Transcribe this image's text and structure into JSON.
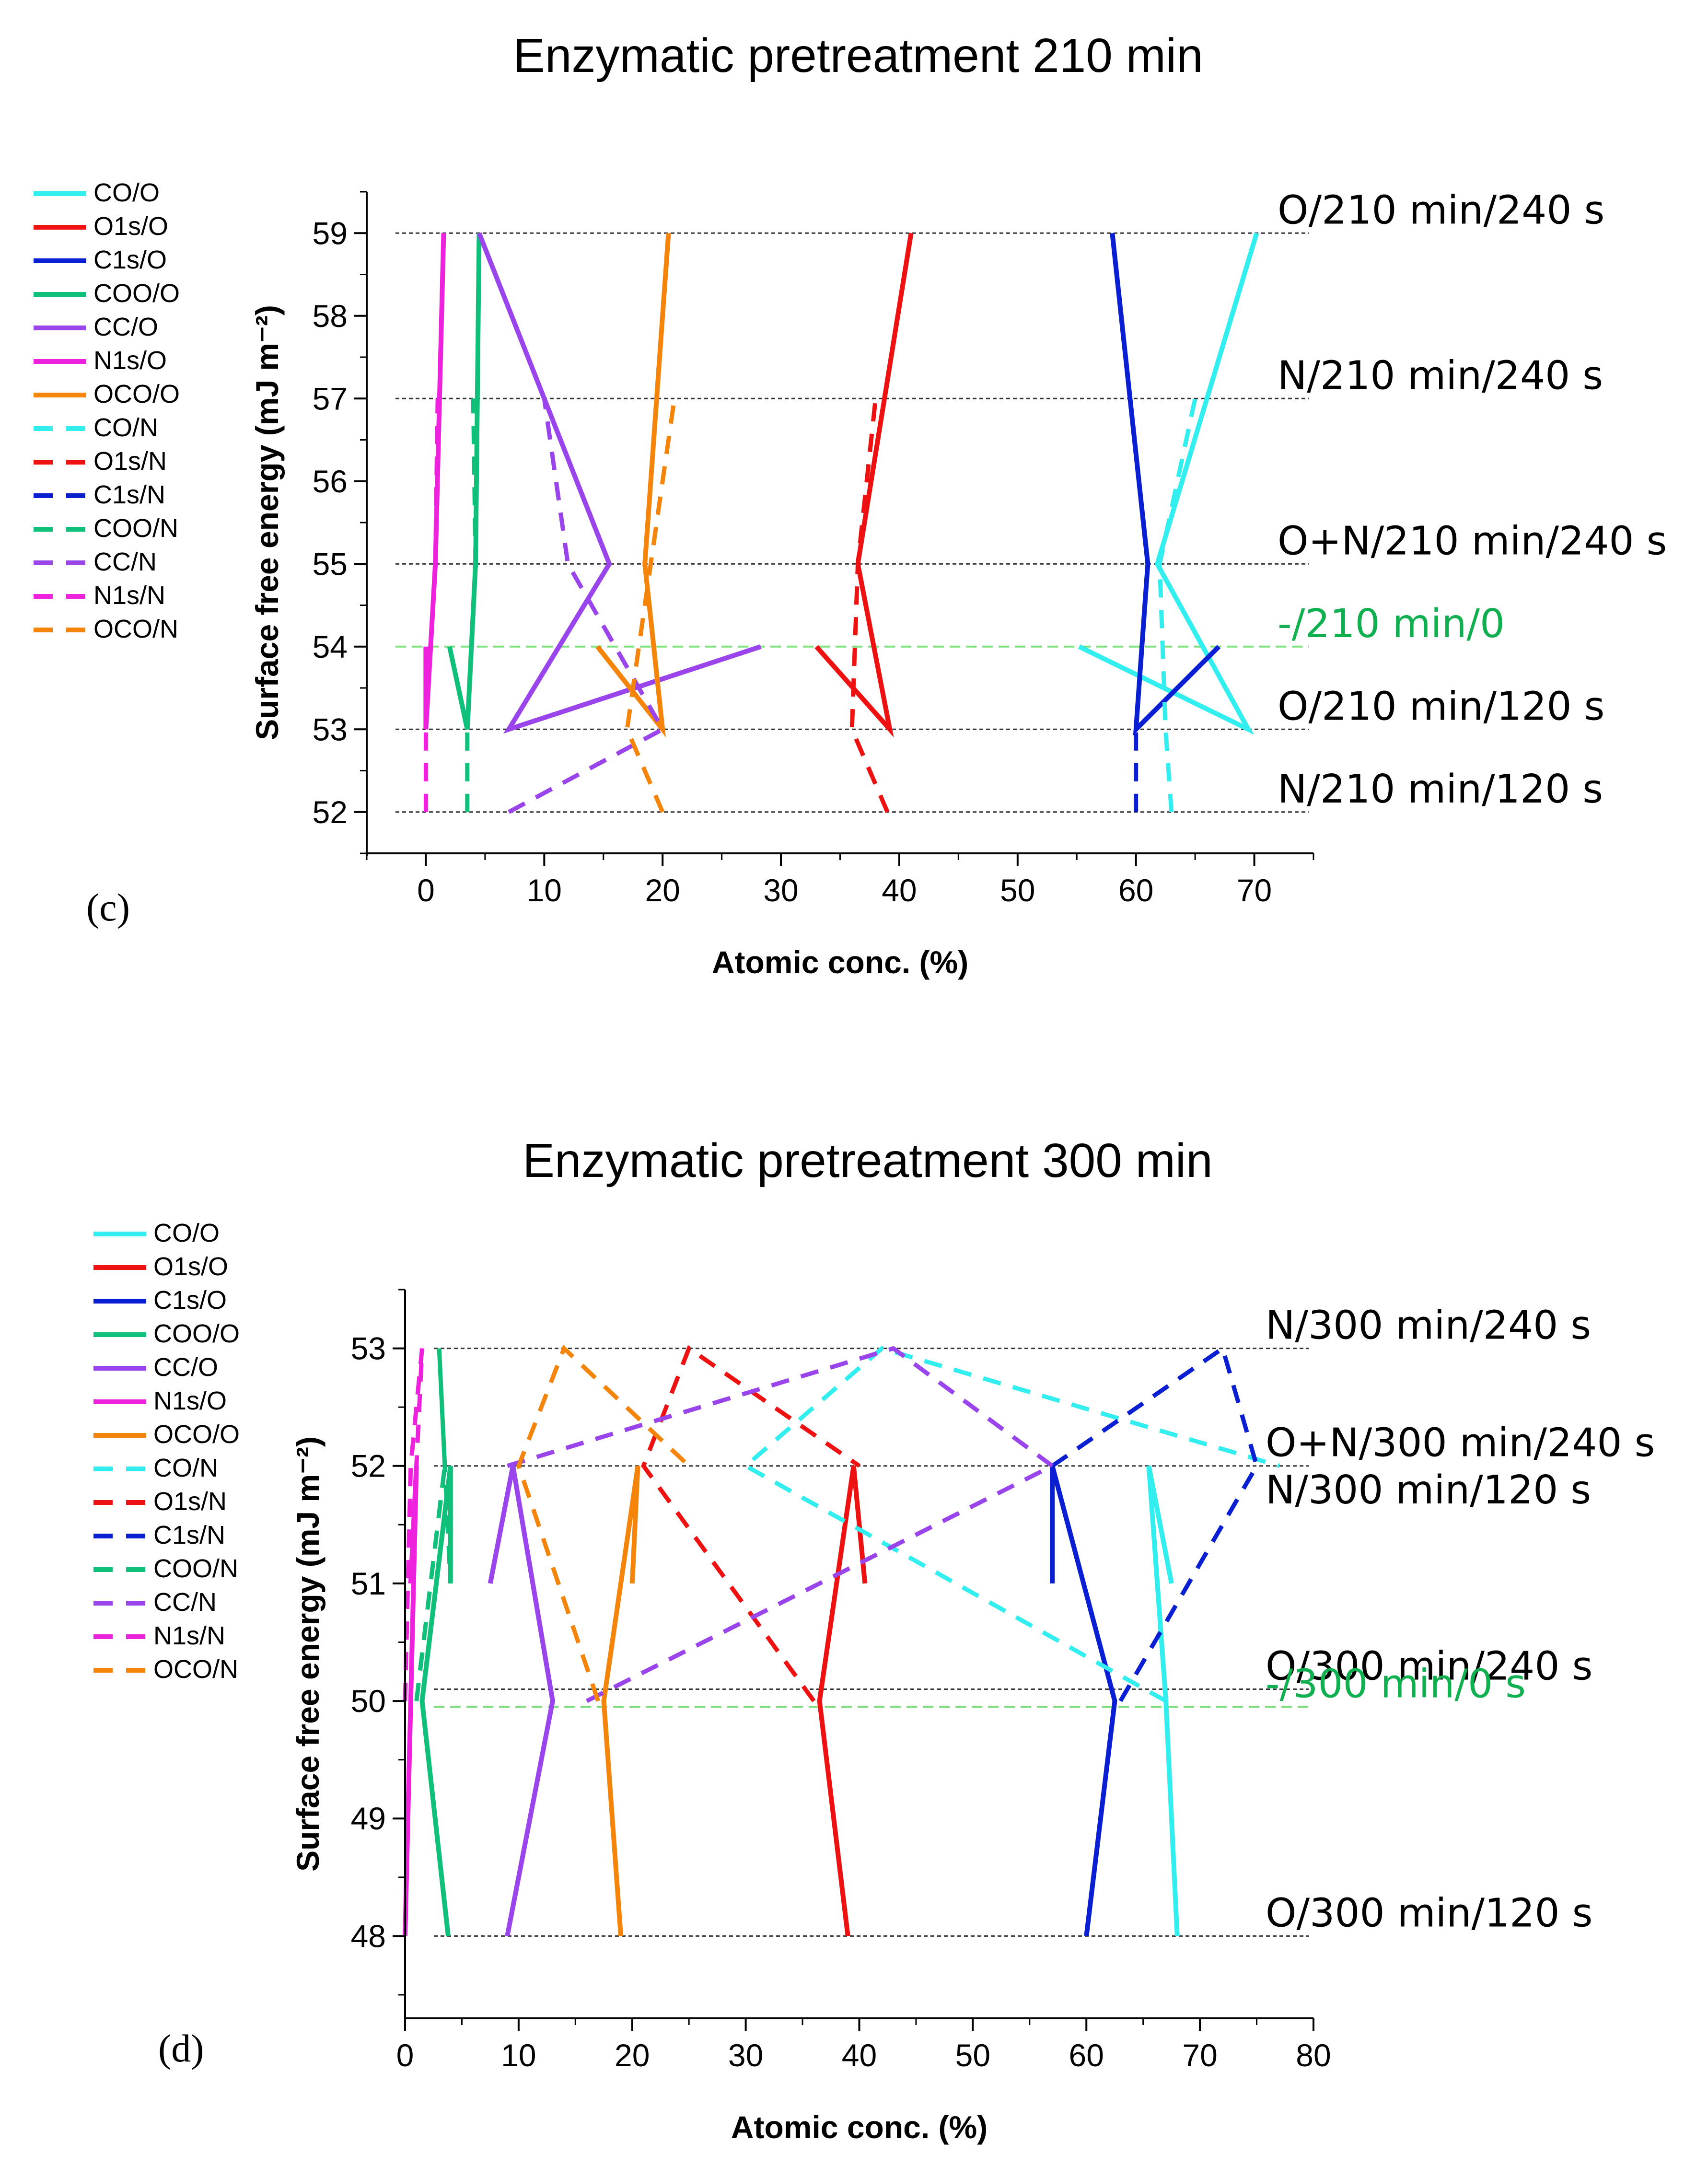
{
  "colors": {
    "CO": "#33eeee",
    "O1s": "#ee1111",
    "C1s": "#0a1ed2",
    "COO": "#10c07a",
    "CC": "#9a44ec",
    "N1s": "#ee22dd",
    "OCO": "#f5840a",
    "annotation_green": "#10b050"
  },
  "chart_data": [
    {
      "type": "line",
      "panel_label": "(c)",
      "title": "Enzymatic pretreatment 210 min",
      "xlabel": "Atomic conc. (%)",
      "ylabel": "Surface free energy (mJ m⁻²)",
      "xlim": [
        -5,
        75
      ],
      "ylim": [
        51.5,
        59.5
      ],
      "xticks": [
        0,
        10,
        20,
        30,
        40,
        50,
        60,
        70
      ],
      "yticks": [
        52,
        53,
        54,
        55,
        56,
        57,
        58,
        59
      ],
      "legend_position": "left",
      "legend": [
        "CO/O",
        "O1s/O",
        "C1s/O",
        "COO/O",
        "CC/O",
        "N1s/O",
        "OCO/O",
        "CO/N",
        "O1s/N",
        "C1s/N",
        "COO/N",
        "CC/N",
        "N1s/N",
        "OCO/N"
      ],
      "reference_lines": [
        {
          "y": 59,
          "label": "O/210 min/240 s",
          "style": "black"
        },
        {
          "y": 57,
          "label": "N/210 min/240 s",
          "style": "black"
        },
        {
          "y": 55,
          "label": "O+N/210 min/240 s",
          "style": "black"
        },
        {
          "y": 54,
          "label": "-/210 min/0",
          "style": "green"
        },
        {
          "y": 53,
          "label": "O/210 min/120 s",
          "style": "black"
        },
        {
          "y": 52,
          "label": "N/210 min/120 s",
          "style": "black"
        }
      ],
      "series": [
        {
          "name": "CO/O",
          "key": "CO",
          "dashed": false,
          "points": [
            [
              55.2,
              54
            ],
            [
              69.5,
              53
            ],
            [
              61.8,
              55
            ],
            [
              70.2,
              59
            ]
          ]
        },
        {
          "name": "O1s/O",
          "key": "O1s",
          "dashed": false,
          "points": [
            [
              33.0,
              54
            ],
            [
              39.2,
              53
            ],
            [
              36.5,
              55
            ],
            [
              41.0,
              59
            ]
          ]
        },
        {
          "name": "C1s/O",
          "key": "C1s",
          "dashed": false,
          "points": [
            [
              67.0,
              54
            ],
            [
              60.0,
              53
            ],
            [
              61.0,
              55
            ],
            [
              58.0,
              59
            ]
          ]
        },
        {
          "name": "COO/O",
          "key": "COO",
          "dashed": false,
          "points": [
            [
              2.0,
              54
            ],
            [
              3.5,
              53
            ],
            [
              4.2,
              55
            ],
            [
              4.5,
              59
            ]
          ]
        },
        {
          "name": "CC/O",
          "key": "CC",
          "dashed": false,
          "points": [
            [
              28.3,
              54
            ],
            [
              7.0,
              53
            ],
            [
              15.5,
              55
            ],
            [
              4.5,
              59
            ]
          ]
        },
        {
          "name": "N1s/O",
          "key": "N1s",
          "dashed": false,
          "points": [
            [
              0.0,
              54
            ],
            [
              0.0,
              53
            ],
            [
              0.8,
              55
            ],
            [
              1.5,
              59
            ]
          ]
        },
        {
          "name": "OCO/O",
          "key": "OCO",
          "dashed": false,
          "points": [
            [
              14.5,
              54
            ],
            [
              20.0,
              53
            ],
            [
              18.5,
              55
            ],
            [
              20.5,
              59
            ]
          ]
        },
        {
          "name": "CO/N",
          "key": "CO",
          "dashed": true,
          "points": [
            [
              63.0,
              52
            ],
            [
              62.5,
              53
            ],
            [
              62.0,
              55
            ],
            [
              65.0,
              57
            ]
          ]
        },
        {
          "name": "O1s/N",
          "key": "O1s",
          "dashed": true,
          "points": [
            [
              39.0,
              52
            ],
            [
              36.0,
              53
            ],
            [
              36.5,
              55
            ],
            [
              38.0,
              57
            ]
          ]
        },
        {
          "name": "C1s/N",
          "key": "C1s",
          "dashed": true,
          "points": [
            [
              60.0,
              52
            ],
            [
              60.0,
              53
            ],
            [
              61.0,
              55
            ],
            [
              59.5,
              57
            ]
          ]
        },
        {
          "name": "COO/N",
          "key": "COO",
          "dashed": true,
          "points": [
            [
              3.5,
              52
            ],
            [
              3.5,
              53
            ],
            [
              4.2,
              55
            ],
            [
              4.0,
              57
            ]
          ]
        },
        {
          "name": "CC/N",
          "key": "CC",
          "dashed": true,
          "points": [
            [
              7.0,
              52
            ],
            [
              20.0,
              53
            ],
            [
              12.0,
              55
            ],
            [
              10.0,
              57
            ]
          ]
        },
        {
          "name": "N1s/N",
          "key": "N1s",
          "dashed": true,
          "points": [
            [
              0.0,
              52
            ],
            [
              0.0,
              53
            ],
            [
              0.8,
              55
            ],
            [
              1.0,
              57
            ]
          ]
        },
        {
          "name": "OCO/N",
          "key": "OCO",
          "dashed": true,
          "points": [
            [
              20.0,
              52
            ],
            [
              17.0,
              53
            ],
            [
              19.0,
              55
            ],
            [
              21.0,
              57
            ]
          ]
        }
      ]
    },
    {
      "type": "line",
      "panel_label": "(d)",
      "title": "Enzymatic pretreatment 300 min",
      "xlabel": "Atomic conc. (%)",
      "ylabel": "Surface free energy (mJ m⁻²)",
      "xlim": [
        0,
        80
      ],
      "ylim": [
        47.3,
        53.5
      ],
      "xticks": [
        0,
        10,
        20,
        30,
        40,
        50,
        60,
        70,
        80
      ],
      "yticks": [
        48,
        49,
        50,
        51,
        52,
        53
      ],
      "legend_position": "left",
      "legend": [
        "CO/O",
        "O1s/O",
        "C1s/O",
        "COO/O",
        "CC/O",
        "N1s/O",
        "OCO/O",
        "CO/N",
        "O1s/N",
        "C1s/N",
        "COO/N",
        "CC/N",
        "N1s/N",
        "OCO/N"
      ],
      "reference_lines": [
        {
          "y": 53,
          "label": "N/300 min/240 s",
          "style": "black"
        },
        {
          "y": 52,
          "label": "O+N/300 min/240 s",
          "style": "black"
        },
        {
          "y": 51.6,
          "label": "N/300 min/120 s",
          "style": "none"
        },
        {
          "y": 50.1,
          "label": "O/300 min/240 s",
          "style": "black"
        },
        {
          "y": 49.95,
          "label": "-/300 min/0 s",
          "style": "green"
        },
        {
          "y": 48,
          "label": "O/300 min/120 s",
          "style": "black"
        }
      ],
      "series": [
        {
          "name": "CO/O",
          "key": "CO",
          "dashed": false,
          "points": [
            [
              68.0,
              48
            ],
            [
              67.0,
              50
            ],
            [
              65.5,
              52
            ],
            [
              67.5,
              51
            ]
          ]
        },
        {
          "name": "O1s/O",
          "key": "O1s",
          "dashed": false,
          "points": [
            [
              39.0,
              48
            ],
            [
              36.5,
              50
            ],
            [
              39.5,
              52
            ],
            [
              40.5,
              51
            ]
          ]
        },
        {
          "name": "C1s/O",
          "key": "C1s",
          "dashed": false,
          "points": [
            [
              60.0,
              48
            ],
            [
              62.5,
              50
            ],
            [
              57.0,
              52
            ],
            [
              57.0,
              51
            ]
          ]
        },
        {
          "name": "COO/O",
          "key": "COO",
          "dashed": false,
          "points": [
            [
              3.8,
              48
            ],
            [
              1.5,
              50
            ],
            [
              4.0,
              52
            ],
            [
              4.0,
              51
            ]
          ]
        },
        {
          "name": "CC/O",
          "key": "CC",
          "dashed": false,
          "points": [
            [
              9.0,
              48
            ],
            [
              13.0,
              50
            ],
            [
              9.5,
              52
            ],
            [
              7.5,
              51
            ]
          ]
        },
        {
          "name": "N1s/O",
          "key": "N1s",
          "dashed": false,
          "points": [
            [
              0.0,
              48
            ],
            [
              0.5,
              50
            ],
            [
              1.0,
              52
            ],
            [
              0.5,
              51
            ]
          ]
        },
        {
          "name": "OCO/O",
          "key": "OCO",
          "dashed": false,
          "points": [
            [
              19.0,
              48
            ],
            [
              17.5,
              50
            ],
            [
              20.5,
              52
            ],
            [
              20.0,
              51
            ]
          ]
        },
        {
          "name": "CO/N",
          "key": "CO",
          "dashed": true,
          "points": [
            [
              67.0,
              50
            ],
            [
              30.0,
              52
            ],
            [
              42.0,
              53
            ],
            [
              77.0,
              52
            ]
          ]
        },
        {
          "name": "O1s/N",
          "key": "O1s",
          "dashed": true,
          "points": [
            [
              36.0,
              50
            ],
            [
              21.0,
              52
            ],
            [
              25.0,
              53
            ],
            [
              40.0,
              52
            ]
          ]
        },
        {
          "name": "C1s/N",
          "key": "C1s",
          "dashed": true,
          "points": [
            [
              63.0,
              50
            ],
            [
              75.0,
              52
            ],
            [
              72.0,
              53
            ],
            [
              57.0,
              52
            ]
          ]
        },
        {
          "name": "COO/N",
          "key": "COO",
          "dashed": true,
          "points": [
            [
              1.0,
              50
            ],
            [
              3.5,
              52
            ],
            [
              3.0,
              53
            ],
            [
              4.0,
              51
            ]
          ]
        },
        {
          "name": "CC/N",
          "key": "CC",
          "dashed": true,
          "points": [
            [
              16.0,
              50
            ],
            [
              57.0,
              52
            ],
            [
              43.0,
              53
            ],
            [
              9.0,
              52
            ]
          ]
        },
        {
          "name": "N1s/N",
          "key": "N1s",
          "dashed": true,
          "points": [
            [
              0.0,
              50
            ],
            [
              0.5,
              52
            ],
            [
              1.5,
              53
            ],
            [
              0.5,
              51
            ]
          ]
        },
        {
          "name": "OCO/N",
          "key": "OCO",
          "dashed": true,
          "points": [
            [
              17.0,
              50
            ],
            [
              10.0,
              52
            ],
            [
              14.0,
              53
            ],
            [
              25.0,
              52
            ]
          ]
        }
      ]
    }
  ]
}
